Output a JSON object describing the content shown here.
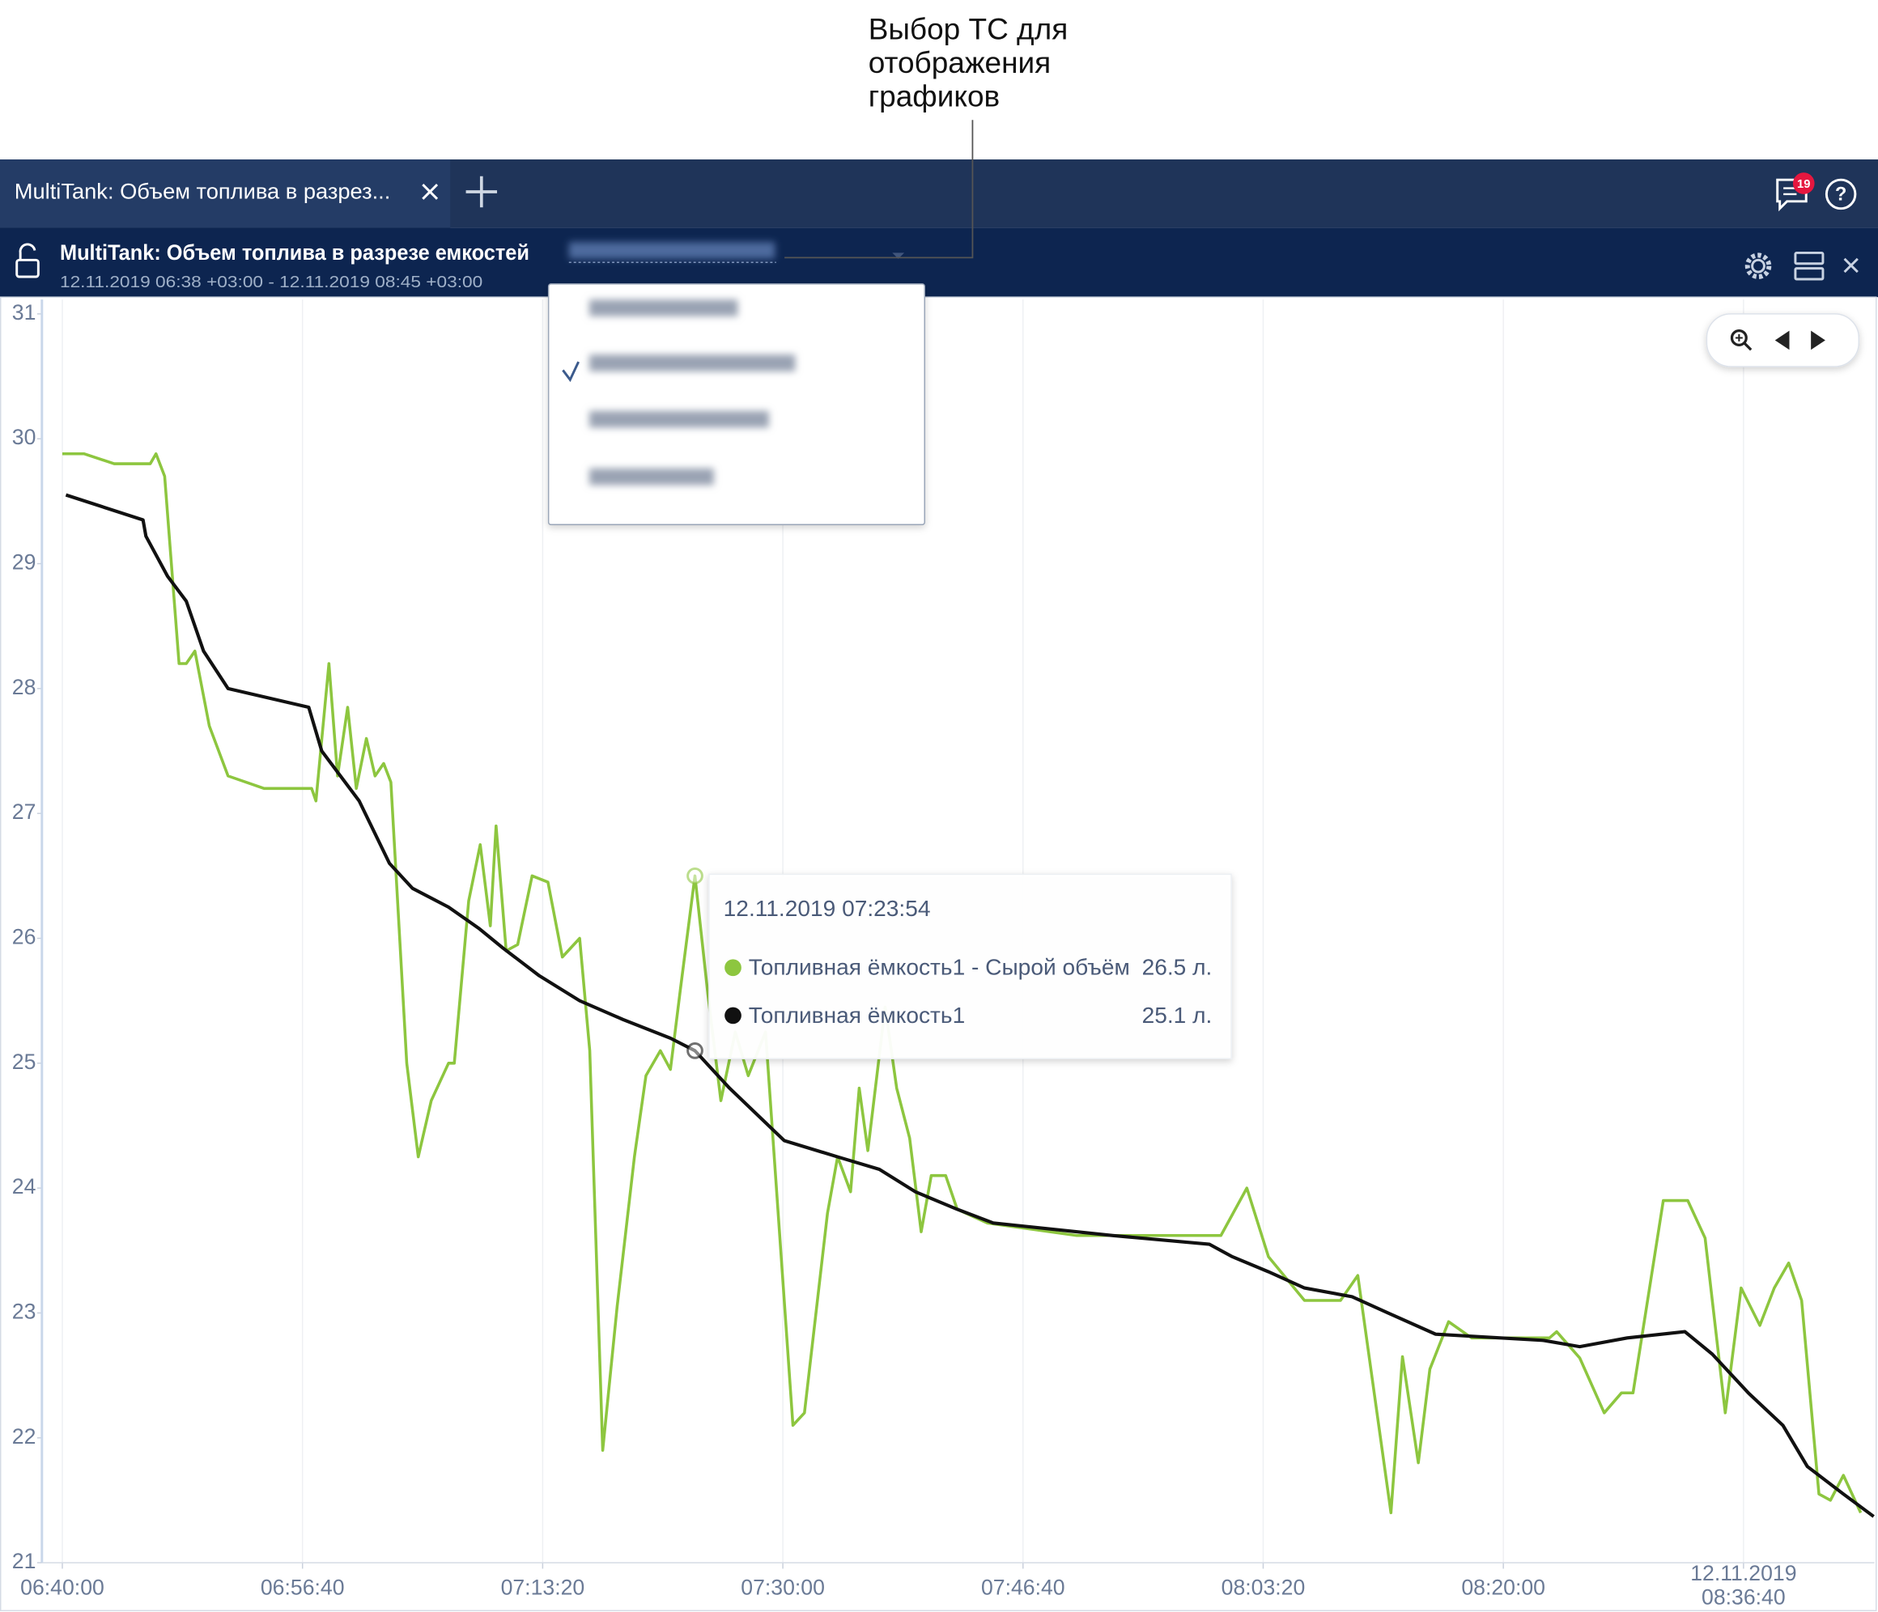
{
  "annotation": {
    "lines": [
      "Выбор ТС для",
      "отображения",
      "графиков"
    ]
  },
  "tabs": {
    "active": "MultiTank: Объем топлива в разрез...",
    "notifications": 19
  },
  "header": {
    "title": "MultiTank: Объем топлива в разрезе емкостей",
    "range": "12.11.2019 06:38 +03:00 - 12.11.2019 08:45 +03:00"
  },
  "chart_data": {
    "type": "line",
    "xlim": [
      "06:38:35",
      "08:45:45"
    ],
    "xticks": [
      "06:40:00",
      "06:56:40",
      "07:13:20",
      "07:30:00",
      "07:46:40",
      "08:03:20",
      "08:20:00",
      {
        "value": "08:36:40",
        "label": "12.11.2019"
      }
    ],
    "ylim": [
      21,
      31
    ],
    "yticks": [
      21,
      22,
      23,
      24,
      25,
      26,
      27,
      28,
      29,
      30,
      31
    ],
    "grid": true,
    "series": [
      {
        "name": "Топливная ёмкость1 - Сырой объём",
        "color": "#8dc63f",
        "x": [
          "06:40:00",
          "06:41:30",
          "06:43:36",
          "06:46:06",
          "06:46:30",
          "06:47:06",
          "06:48:06",
          "06:48:36",
          "06:49:12",
          "06:50:12",
          "06:51:30",
          "06:54:00",
          "06:57:18",
          "06:57:36",
          "06:58:30",
          "06:59:06",
          "06:59:48",
          "07:00:24",
          "07:01:06",
          "07:01:42",
          "07:02:18",
          "07:02:48",
          "07:03:54",
          "07:04:42",
          "07:05:36",
          "07:06:48",
          "07:07:12",
          "07:08:12",
          "07:09:00",
          "07:09:42",
          "07:10:06",
          "07:10:48",
          "07:11:36",
          "07:12:36",
          "07:13:42",
          "07:14:42",
          "07:15:54",
          "07:16:36",
          "07:17:30",
          "07:18:30",
          "07:19:42",
          "07:20:30",
          "07:21:30",
          "07:22:12",
          "07:22:54",
          "07:23:54",
          "07:24:48",
          "07:25:42",
          "07:26:42",
          "07:27:36",
          "07:28:48",
          "07:30:42",
          "07:31:30",
          "07:33:06",
          "07:33:48",
          "07:34:42",
          "07:35:18",
          "07:35:54",
          "07:37:06",
          "07:37:54",
          "07:38:48",
          "07:39:36",
          "07:40:18",
          "07:41:18",
          "07:42:06",
          "07:44:12",
          "07:50:24",
          "08:00:24",
          "08:02:12",
          "08:03:42",
          "08:06:12",
          "08:08:42",
          "08:09:54",
          "08:12:12",
          "08:13:00",
          "08:14:06",
          "08:14:54",
          "08:16:12",
          "08:17:48",
          "08:23:12",
          "08:23:42",
          "08:25:18",
          "08:27:00",
          "08:28:12",
          "08:29:00",
          "08:31:06",
          "08:32:48",
          "08:34:00",
          "08:35:24",
          "08:36:30",
          "08:37:48",
          "08:38:48",
          "08:39:48",
          "08:40:42",
          "08:41:54",
          "08:42:42",
          "08:43:36",
          "08:44:48"
        ],
        "values": [
          29.88,
          29.88,
          29.8,
          29.8,
          29.88,
          29.7,
          28.2,
          28.2,
          28.3,
          27.7,
          27.3,
          27.2,
          27.2,
          27.1,
          28.2,
          27.3,
          27.85,
          27.2,
          27.6,
          27.3,
          27.4,
          27.25,
          25.0,
          24.25,
          24.7,
          25.0,
          25.0,
          26.3,
          26.75,
          26.1,
          26.9,
          25.9,
          25.95,
          26.5,
          26.45,
          25.85,
          26.0,
          25.1,
          21.9,
          23.05,
          24.25,
          24.9,
          25.1,
          24.95,
          25.6,
          26.5,
          25.55,
          24.7,
          25.25,
          24.9,
          25.25,
          22.1,
          22.2,
          23.8,
          24.25,
          23.97,
          24.8,
          24.3,
          25.45,
          24.8,
          24.4,
          23.65,
          24.1,
          24.1,
          23.83,
          23.72,
          23.62,
          23.62,
          24.0,
          23.45,
          23.1,
          23.1,
          23.3,
          21.4,
          22.65,
          21.8,
          22.55,
          22.93,
          22.8,
          22.8,
          22.85,
          22.64,
          22.2,
          22.36,
          22.36,
          23.9,
          23.9,
          23.6,
          22.2,
          23.2,
          22.9,
          23.2,
          23.4,
          23.1,
          21.55,
          21.5,
          21.7,
          21.4
        ]
      },
      {
        "name": "Топливная ёмкость1",
        "color": "#111111",
        "x": [
          "06:40:15",
          "06:45:36",
          "06:45:48",
          "06:47:18",
          "06:48:36",
          "06:49:48",
          "06:51:30",
          "06:57:06",
          "06:58:00",
          "07:00:36",
          "07:02:42",
          "07:04:18",
          "07:06:48",
          "07:08:54",
          "07:10:36",
          "07:13:06",
          "07:15:54",
          "07:18:54",
          "07:22:12",
          "07:23:54",
          "07:26:18",
          "07:30:06",
          "07:33:48",
          "07:36:42",
          "07:39:12",
          "07:42:06",
          "07:44:36",
          "07:52:54",
          "07:59:36",
          "08:01:12",
          "08:03:42",
          "08:06:12",
          "08:09:30",
          "08:12:00",
          "08:15:18",
          "08:22:48",
          "08:25:18",
          "08:28:36",
          "08:32:36",
          "08:34:30",
          "08:37:00",
          "08:39:24",
          "08:41:06",
          "08:43:36",
          "08:45:42"
        ],
        "values": [
          29.55,
          29.35,
          29.22,
          28.9,
          28.7,
          28.3,
          28.0,
          27.85,
          27.5,
          27.1,
          26.6,
          26.4,
          26.25,
          26.08,
          25.92,
          25.7,
          25.5,
          25.35,
          25.2,
          25.1,
          24.8,
          24.38,
          24.25,
          24.15,
          23.97,
          23.83,
          23.72,
          23.62,
          23.55,
          23.45,
          23.33,
          23.2,
          23.13,
          23.0,
          22.83,
          22.78,
          22.73,
          22.8,
          22.85,
          22.67,
          22.36,
          22.1,
          21.77,
          21.55,
          21.37
        ]
      }
    ],
    "tooltip": {
      "x": "12.11.2019 07:23:54",
      "items": [
        {
          "value": 26.5,
          "value_label": "26.5 л."
        },
        {
          "value": 25.1,
          "value_label": "25.1 л."
        }
      ]
    }
  }
}
